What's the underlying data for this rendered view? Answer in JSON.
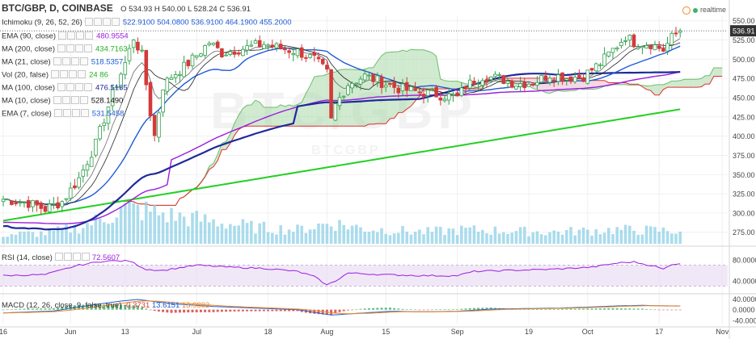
{
  "header": {
    "symbol": "BTC/GBP, D, COINBASE",
    "ohlc": "O 534.93  H 540.00  L 528.24  C 536.91",
    "realtime_label": "realtime"
  },
  "watermark": {
    "big": "BTC/GBP",
    "small": "BTCGBP"
  },
  "legend": [
    {
      "name": "Ichimoku (9, 26, 52, 26)",
      "value": "522.9100  504.0800  536.9100  464.1900  455.2000",
      "color": "#1e5bd6"
    },
    {
      "name": "EMA (90, close)",
      "value": "480.9554",
      "color": "#9b1de0"
    },
    {
      "name": "MA (200, close)",
      "value": "434.7163",
      "color": "#22b022"
    },
    {
      "name": "MA (21, close)",
      "value": "518.5357",
      "color": "#1e5bd6"
    },
    {
      "name": "Vol (20, false)",
      "value": "24  86",
      "color": "#22b022"
    },
    {
      "name": "MA (100, close)",
      "value": "476.5165",
      "color": "#1e2a9a"
    },
    {
      "name": "MA (10, close)",
      "value": "528.1490",
      "color": "#111111"
    },
    {
      "name": "EMA (7, close)",
      "value": "531.5458",
      "color": "#1e5bd6"
    }
  ],
  "rsi_label": {
    "name": "RSI (14, close)",
    "value": "72.5607"
  },
  "macd_label": {
    "name": "MACD (12, 26, close, 9, false, true)",
    "v1": "-0.3731",
    "v2": "13.6151",
    "v3": "13.9883"
  },
  "chart_data": {
    "type": "candlestick",
    "title": "BTC/GBP, D, COINBASE",
    "last_price": 536.91,
    "price_axis": {
      "ticks": [
        275,
        300,
        325,
        350,
        375,
        400,
        425,
        450,
        475,
        500,
        525,
        550
      ],
      "range": [
        260,
        556
      ],
      "labels": [
        "275.00",
        "300.00",
        "325.00",
        "350.00",
        "375.00",
        "400.00",
        "425.00",
        "450.00",
        "475.00",
        "500.00",
        "525.00",
        "550.00"
      ]
    },
    "rsi_axis": {
      "ticks": [
        40,
        80
      ],
      "labels": [
        "40.0000",
        "80.0000"
      ],
      "range": [
        20,
        100
      ],
      "overbought": 70,
      "oversold": 30
    },
    "macd_axis": {
      "ticks": [
        40,
        0,
        -40
      ],
      "labels": [
        "40.0000",
        "0.0000",
        "-40.0000"
      ],
      "range": [
        -55,
        50
      ]
    },
    "x_labels": [
      {
        "day": 0,
        "label": "16"
      },
      {
        "day": 16,
        "label": "Jun"
      },
      {
        "day": 29,
        "label": "13"
      },
      {
        "day": 46,
        "label": "Jul"
      },
      {
        "day": 63,
        "label": "18"
      },
      {
        "day": 77,
        "label": "Aug"
      },
      {
        "day": 91,
        "label": "15"
      },
      {
        "day": 108,
        "label": "Sep"
      },
      {
        "day": 125,
        "label": "19"
      },
      {
        "day": 139,
        "label": "Oct"
      },
      {
        "day": 156,
        "label": "17"
      },
      {
        "day": 171,
        "label": "Nov"
      }
    ],
    "close_anchors": [
      [
        0,
        318
      ],
      [
        6,
        313
      ],
      [
        10,
        305
      ],
      [
        14,
        315
      ],
      [
        18,
        345
      ],
      [
        22,
        390
      ],
      [
        26,
        455
      ],
      [
        29,
        495
      ],
      [
        31,
        528
      ],
      [
        33,
        505
      ],
      [
        35,
        430
      ],
      [
        36,
        400
      ],
      [
        38,
        465
      ],
      [
        40,
        478
      ],
      [
        43,
        490
      ],
      [
        46,
        505
      ],
      [
        49,
        522
      ],
      [
        52,
        508
      ],
      [
        55,
        512
      ],
      [
        58,
        515
      ],
      [
        62,
        520
      ],
      [
        66,
        514
      ],
      [
        70,
        510
      ],
      [
        74,
        500
      ],
      [
        77,
        482
      ],
      [
        78,
        420
      ],
      [
        79,
        440
      ],
      [
        82,
        468
      ],
      [
        86,
        478
      ],
      [
        90,
        470
      ],
      [
        94,
        462
      ],
      [
        98,
        458
      ],
      [
        102,
        455
      ],
      [
        106,
        452
      ],
      [
        108,
        450
      ],
      [
        110,
        465
      ],
      [
        114,
        478
      ],
      [
        118,
        475
      ],
      [
        122,
        468
      ],
      [
        126,
        470
      ],
      [
        130,
        480
      ],
      [
        134,
        476
      ],
      [
        138,
        478
      ],
      [
        142,
        495
      ],
      [
        146,
        518
      ],
      [
        148,
        530
      ],
      [
        150,
        522
      ],
      [
        154,
        520
      ],
      [
        157,
        512
      ],
      [
        159,
        528
      ],
      [
        161,
        536.91
      ]
    ],
    "volume_anchors": [
      [
        0,
        8
      ],
      [
        10,
        9
      ],
      [
        18,
        14
      ],
      [
        24,
        22
      ],
      [
        29,
        30
      ],
      [
        34,
        28
      ],
      [
        40,
        24
      ],
      [
        48,
        20
      ],
      [
        60,
        14
      ],
      [
        70,
        12
      ],
      [
        78,
        18
      ],
      [
        86,
        13
      ],
      [
        100,
        10
      ],
      [
        110,
        12
      ],
      [
        130,
        10
      ],
      [
        146,
        12
      ],
      [
        161,
        11
      ]
    ],
    "rsi_anchors": [
      [
        0,
        50
      ],
      [
        10,
        52
      ],
      [
        18,
        70
      ],
      [
        24,
        78
      ],
      [
        30,
        78
      ],
      [
        34,
        62
      ],
      [
        38,
        60
      ],
      [
        46,
        70
      ],
      [
        54,
        66
      ],
      [
        62,
        64
      ],
      [
        70,
        58
      ],
      [
        74,
        48
      ],
      [
        77,
        32
      ],
      [
        79,
        40
      ],
      [
        82,
        55
      ],
      [
        90,
        52
      ],
      [
        100,
        50
      ],
      [
        108,
        50
      ],
      [
        112,
        58
      ],
      [
        120,
        60
      ],
      [
        130,
        62
      ],
      [
        140,
        66
      ],
      [
        146,
        74
      ],
      [
        150,
        76
      ],
      [
        155,
        68
      ],
      [
        157,
        62
      ],
      [
        159,
        72
      ],
      [
        161,
        72.56
      ]
    ],
    "macd_anchors": [
      [
        0,
        -12
      ],
      [
        12,
        -5
      ],
      [
        20,
        15
      ],
      [
        28,
        32
      ],
      [
        32,
        38
      ],
      [
        40,
        22
      ],
      [
        50,
        12
      ],
      [
        60,
        6
      ],
      [
        70,
        0
      ],
      [
        78,
        -20
      ],
      [
        84,
        -14
      ],
      [
        92,
        -6
      ],
      [
        100,
        -8
      ],
      [
        108,
        -6
      ],
      [
        116,
        2
      ],
      [
        124,
        4
      ],
      [
        132,
        6
      ],
      [
        140,
        10
      ],
      [
        146,
        14
      ],
      [
        152,
        16
      ],
      [
        158,
        14
      ],
      [
        161,
        13.6
      ]
    ],
    "series": [
      {
        "name": "EMA (90, close)",
        "last": 480.9554
      },
      {
        "name": "MA (200, close)",
        "last": 434.7163
      },
      {
        "name": "MA (21, close)",
        "last": 518.5357
      },
      {
        "name": "MA (100, close)",
        "last": 476.5165
      },
      {
        "name": "MA (10, close)",
        "last": 528.149
      },
      {
        "name": "EMA (7, close)",
        "last": 531.5458
      }
    ],
    "colors": {
      "up": "#2e9e4a",
      "down": "#d23a3a",
      "ema90": "#9b1de0",
      "ma200": "#22d022",
      "ma21": "#1e5bd6",
      "ma100": "#1e2a9a",
      "ma10": "#222222",
      "ema7": "#6a6a6a",
      "cloud_up": "#a9d9a9",
      "cloud_down": "#e8b9cc",
      "senkou_b": "#e03030",
      "volume": "#8fd0e6",
      "rsi": "#9b1de0",
      "rsi_band": "#e8d8f2",
      "macd": "#1e5bd6",
      "signal": "#f08a24"
    }
  }
}
